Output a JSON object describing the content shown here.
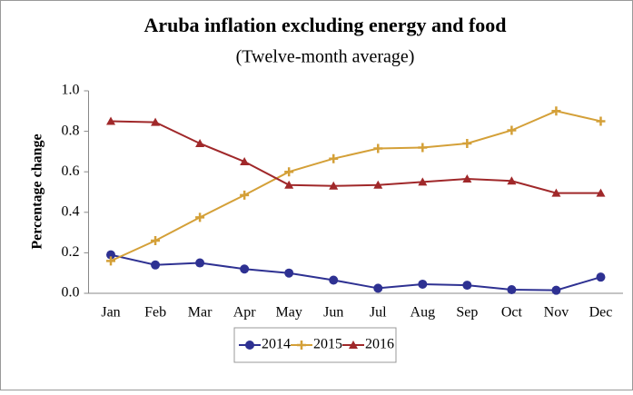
{
  "chart_data": {
    "type": "line",
    "title": "Aruba inflation excluding energy and food",
    "subtitle": "(Twelve-month average)",
    "y_label": "Percentage change",
    "categories": [
      "Jan",
      "Feb",
      "Mar",
      "Apr",
      "May",
      "Jun",
      "Jul",
      "Aug",
      "Sep",
      "Oct",
      "Nov",
      "Dec"
    ],
    "series": [
      {
        "name": "2014",
        "color": "#2e3192",
        "marker": "circle",
        "values": [
          0.19,
          0.14,
          0.15,
          0.12,
          0.1,
          0.065,
          0.025,
          0.045,
          0.04,
          0.018,
          0.015,
          0.08
        ]
      },
      {
        "name": "2015",
        "color": "#d4a038",
        "marker": "plus",
        "values": [
          0.16,
          0.26,
          0.375,
          0.485,
          0.6,
          0.665,
          0.715,
          0.72,
          0.74,
          0.805,
          0.9,
          0.85
        ]
      },
      {
        "name": "2016",
        "color": "#a0282a",
        "marker": "triangle",
        "values": [
          0.85,
          0.845,
          0.74,
          0.65,
          0.535,
          0.53,
          0.535,
          0.55,
          0.565,
          0.555,
          0.495,
          0.495
        ]
      }
    ],
    "ylim": [
      0,
      1
    ],
    "yticks": [
      {
        "value": 0,
        "label": "0.0"
      },
      0.2,
      0.4,
      0.6,
      0.8,
      {
        "value": 1,
        "label": "1.0"
      }
    ],
    "grid": false,
    "legend": "bottom"
  }
}
